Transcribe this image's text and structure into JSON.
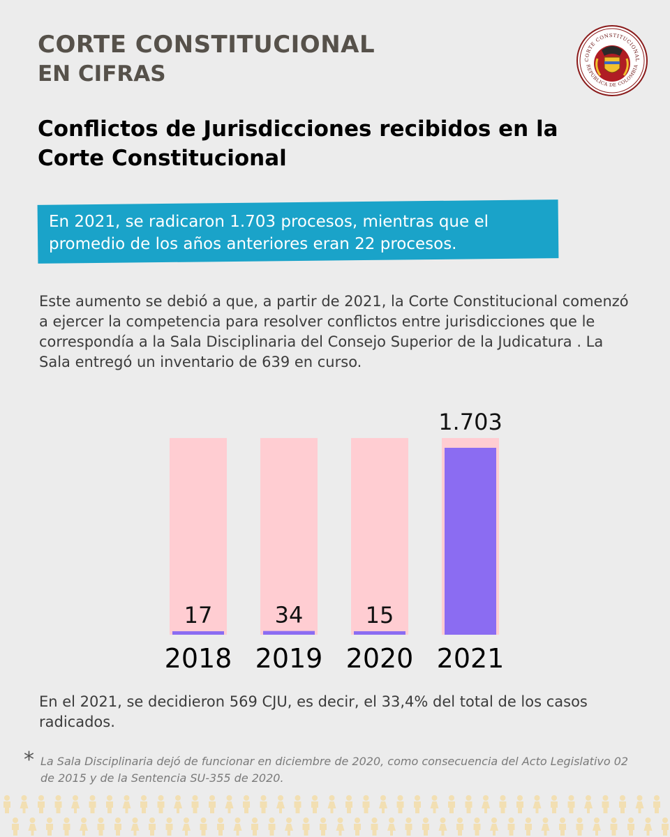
{
  "header": {
    "title": "CORTE CONSTITUCIONAL",
    "subtitle": "EN CIFRAS",
    "seal_text_top": "CORTE CONSTITUCIONAL",
    "seal_text_bottom": "REPÚBLICA DE COLOMBIA"
  },
  "heading": "Conflictos de Jurisdicciones recibidos en la Corte Constitucional",
  "callout": "En 2021, se radicaron 1.703 procesos, mientras que el promedio de los años anteriores eran 22 procesos.",
  "body": "Este aumento se debió a que, a partir de 2021, la Corte Constitucional comenzó a ejercer la competencia para resolver conflictos entre jurisdicciones que le correspondía a la Sala Disciplinaria del Consejo Superior de la Judicatura . La Sala entregó un inventario de 639 en curso.",
  "chart_data": {
    "type": "bar",
    "title": "",
    "xlabel": "",
    "ylabel": "",
    "categories": [
      "2018",
      "2019",
      "2020",
      "2021"
    ],
    "values": [
      17,
      34,
      15,
      1703
    ],
    "value_labels": [
      "17",
      "34",
      "15",
      "1.703"
    ],
    "ylim": [
      0,
      1703
    ],
    "grid": false,
    "colors": {
      "bar": "#8b6cf2",
      "track": "#ffcdd2"
    }
  },
  "decision_text": "En el 2021, se decidieron 569 CJU, es decir, el 33,4% del total de los casos radicados.",
  "footnote_mark": "*",
  "footnote": "La Sala Disciplinaria dejó de funcionar en diciembre de 2020, como consecuencia del Acto Legislativo 02 de 2015 y de la Sentencia SU-355 de 2020.",
  "colors": {
    "background": "#ececec",
    "title": "#56514a",
    "callout": "#1aa3c9",
    "people": "#f2dfb3",
    "seal_red": "#b01d24"
  }
}
